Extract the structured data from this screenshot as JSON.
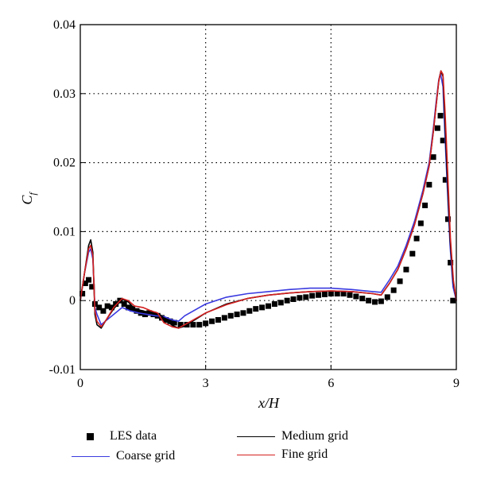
{
  "chart_data": {
    "type": "line",
    "xlabel": "x/H",
    "ylabel": "C_f",
    "xlim": [
      0,
      9
    ],
    "ylim": [
      -0.01,
      0.04
    ],
    "x_ticks": [
      0,
      3,
      6,
      9
    ],
    "x_tick_labels": [
      "0",
      "3",
      "6",
      "9"
    ],
    "y_ticks": [
      -0.01,
      0,
      0.01,
      0.02,
      0.03,
      0.04
    ],
    "y_tick_labels": [
      "-0.01",
      "0",
      "0.01",
      "0.02",
      "0.03",
      "0.04"
    ],
    "grid": "dotted",
    "legend_position": "bottom",
    "series": [
      {
        "name": "LES data",
        "marker": "square",
        "color": "#000000",
        "points": [
          [
            0.05,
            0.001
          ],
          [
            0.12,
            0.0025
          ],
          [
            0.2,
            0.003
          ],
          [
            0.28,
            0.002
          ],
          [
            0.35,
            -0.0005
          ],
          [
            0.45,
            -0.001
          ],
          [
            0.55,
            -0.0015
          ],
          [
            0.65,
            -0.0008
          ],
          [
            0.75,
            -0.001
          ],
          [
            0.85,
            -0.0005
          ],
          [
            0.95,
            0.0
          ],
          [
            1.05,
            -0.0005
          ],
          [
            1.15,
            -0.001
          ],
          [
            1.25,
            -0.0012
          ],
          [
            1.35,
            -0.0015
          ],
          [
            1.45,
            -0.0018
          ],
          [
            1.55,
            -0.002
          ],
          [
            1.65,
            -0.0018
          ],
          [
            1.75,
            -0.002
          ],
          [
            1.85,
            -0.0022
          ],
          [
            1.95,
            -0.0025
          ],
          [
            2.05,
            -0.0028
          ],
          [
            2.15,
            -0.003
          ],
          [
            2.25,
            -0.0032
          ],
          [
            2.4,
            -0.0035
          ],
          [
            2.55,
            -0.0035
          ],
          [
            2.7,
            -0.0035
          ],
          [
            2.85,
            -0.0035
          ],
          [
            3.0,
            -0.0033
          ],
          [
            3.15,
            -0.003
          ],
          [
            3.3,
            -0.0028
          ],
          [
            3.45,
            -0.0025
          ],
          [
            3.6,
            -0.0022
          ],
          [
            3.75,
            -0.002
          ],
          [
            3.9,
            -0.0018
          ],
          [
            4.05,
            -0.0015
          ],
          [
            4.2,
            -0.0012
          ],
          [
            4.35,
            -0.001
          ],
          [
            4.5,
            -0.0008
          ],
          [
            4.65,
            -0.0005
          ],
          [
            4.8,
            -0.0003
          ],
          [
            4.95,
            0.0
          ],
          [
            5.1,
            0.0002
          ],
          [
            5.25,
            0.0004
          ],
          [
            5.4,
            0.0005
          ],
          [
            5.55,
            0.0007
          ],
          [
            5.7,
            0.0008
          ],
          [
            5.85,
            0.0009
          ],
          [
            6.0,
            0.001
          ],
          [
            6.15,
            0.001
          ],
          [
            6.3,
            0.001
          ],
          [
            6.45,
            0.0008
          ],
          [
            6.6,
            0.0006
          ],
          [
            6.75,
            0.0003
          ],
          [
            6.9,
            0.0
          ],
          [
            7.05,
            -0.0002
          ],
          [
            7.2,
            -0.0001
          ],
          [
            7.35,
            0.0005
          ],
          [
            7.5,
            0.0015
          ],
          [
            7.65,
            0.0028
          ],
          [
            7.8,
            0.0045
          ],
          [
            7.95,
            0.0068
          ],
          [
            8.05,
            0.009
          ],
          [
            8.15,
            0.0112
          ],
          [
            8.25,
            0.0138
          ],
          [
            8.35,
            0.0168
          ],
          [
            8.45,
            0.0208
          ],
          [
            8.55,
            0.025
          ],
          [
            8.62,
            0.0268
          ],
          [
            8.68,
            0.0232
          ],
          [
            8.74,
            0.0175
          ],
          [
            8.8,
            0.0118
          ],
          [
            8.86,
            0.0055
          ],
          [
            8.92,
            0.0
          ]
        ]
      },
      {
        "name": "Coarse grid",
        "color": "#3a3ae0",
        "points": [
          [
            0.0,
            0.0
          ],
          [
            0.1,
            0.004
          ],
          [
            0.2,
            0.007
          ],
          [
            0.25,
            0.0075
          ],
          [
            0.3,
            0.006
          ],
          [
            0.35,
            -0.001
          ],
          [
            0.4,
            -0.002
          ],
          [
            0.5,
            -0.0035
          ],
          [
            0.6,
            -0.003
          ],
          [
            0.8,
            -0.002
          ],
          [
            1.0,
            -0.001
          ],
          [
            1.2,
            -0.0015
          ],
          [
            1.4,
            -0.0018
          ],
          [
            1.6,
            -0.002
          ],
          [
            1.8,
            -0.0022
          ],
          [
            2.0,
            -0.0023
          ],
          [
            2.2,
            -0.0028
          ],
          [
            2.35,
            -0.003
          ],
          [
            2.5,
            -0.0022
          ],
          [
            3.0,
            -0.0005
          ],
          [
            3.5,
            0.0005
          ],
          [
            4.0,
            0.001
          ],
          [
            4.5,
            0.0013
          ],
          [
            5.0,
            0.0016
          ],
          [
            5.5,
            0.0018
          ],
          [
            6.0,
            0.0018
          ],
          [
            6.5,
            0.0016
          ],
          [
            7.0,
            0.0013
          ],
          [
            7.2,
            0.0012
          ],
          [
            7.4,
            0.003
          ],
          [
            7.6,
            0.005
          ],
          [
            7.8,
            0.008
          ],
          [
            8.0,
            0.0115
          ],
          [
            8.2,
            0.016
          ],
          [
            8.35,
            0.02
          ],
          [
            8.45,
            0.025
          ],
          [
            8.52,
            0.029
          ],
          [
            8.58,
            0.032
          ],
          [
            8.62,
            0.033
          ],
          [
            8.68,
            0.031
          ],
          [
            8.72,
            0.025
          ],
          [
            8.78,
            0.017
          ],
          [
            8.85,
            0.008
          ],
          [
            8.92,
            0.002
          ],
          [
            9.0,
            0.0
          ]
        ]
      },
      {
        "name": "Medium grid",
        "color": "#000000",
        "points": [
          [
            0.0,
            0.0
          ],
          [
            0.1,
            0.004
          ],
          [
            0.2,
            0.008
          ],
          [
            0.25,
            0.0088
          ],
          [
            0.3,
            0.007
          ],
          [
            0.35,
            -0.002
          ],
          [
            0.4,
            -0.0035
          ],
          [
            0.5,
            -0.004
          ],
          [
            0.6,
            -0.003
          ],
          [
            0.8,
            -0.0012
          ],
          [
            1.0,
            0.0002
          ],
          [
            1.15,
            -0.0002
          ],
          [
            1.3,
            -0.0012
          ],
          [
            1.5,
            -0.0015
          ],
          [
            1.7,
            -0.0018
          ],
          [
            1.9,
            -0.002
          ],
          [
            2.05,
            -0.0028
          ],
          [
            2.2,
            -0.0036
          ],
          [
            2.35,
            -0.004
          ],
          [
            2.5,
            -0.0037
          ],
          [
            3.0,
            -0.0018
          ],
          [
            3.5,
            -0.0005
          ],
          [
            4.0,
            0.0003
          ],
          [
            4.5,
            0.0008
          ],
          [
            5.0,
            0.0011
          ],
          [
            5.5,
            0.0013
          ],
          [
            6.0,
            0.0014
          ],
          [
            6.5,
            0.0013
          ],
          [
            7.0,
            0.001
          ],
          [
            7.2,
            0.0008
          ],
          [
            7.4,
            0.0025
          ],
          [
            7.6,
            0.0045
          ],
          [
            7.8,
            0.0075
          ],
          [
            8.0,
            0.011
          ],
          [
            8.2,
            0.0155
          ],
          [
            8.35,
            0.0195
          ],
          [
            8.45,
            0.0245
          ],
          [
            8.52,
            0.0285
          ],
          [
            8.58,
            0.0318
          ],
          [
            8.63,
            0.0333
          ],
          [
            8.68,
            0.0325
          ],
          [
            8.72,
            0.027
          ],
          [
            8.78,
            0.0185
          ],
          [
            8.85,
            0.009
          ],
          [
            8.92,
            0.003
          ],
          [
            9.0,
            0.0
          ]
        ]
      },
      {
        "name": "Fine grid",
        "color": "#d42020",
        "points": [
          [
            0.0,
            0.0
          ],
          [
            0.1,
            0.004
          ],
          [
            0.2,
            0.0075
          ],
          [
            0.25,
            0.008
          ],
          [
            0.3,
            0.0065
          ],
          [
            0.35,
            -0.0015
          ],
          [
            0.4,
            -0.003
          ],
          [
            0.5,
            -0.0038
          ],
          [
            0.6,
            -0.003
          ],
          [
            0.8,
            -0.001
          ],
          [
            1.0,
            0.0003
          ],
          [
            1.15,
            0.0
          ],
          [
            1.3,
            -0.0008
          ],
          [
            1.5,
            -0.001
          ],
          [
            1.7,
            -0.0015
          ],
          [
            1.85,
            -0.0018
          ],
          [
            2.0,
            -0.0032
          ],
          [
            2.2,
            -0.0038
          ],
          [
            2.35,
            -0.004
          ],
          [
            2.5,
            -0.0035
          ],
          [
            3.0,
            -0.0018
          ],
          [
            3.5,
            -0.0006
          ],
          [
            4.0,
            0.0003
          ],
          [
            4.5,
            0.0008
          ],
          [
            5.0,
            0.0011
          ],
          [
            5.5,
            0.0013
          ],
          [
            6.0,
            0.0014
          ],
          [
            6.5,
            0.0013
          ],
          [
            7.0,
            0.001
          ],
          [
            7.2,
            0.0008
          ],
          [
            7.4,
            0.0025
          ],
          [
            7.6,
            0.0045
          ],
          [
            7.8,
            0.0075
          ],
          [
            8.0,
            0.011
          ],
          [
            8.2,
            0.0155
          ],
          [
            8.35,
            0.0195
          ],
          [
            8.45,
            0.0245
          ],
          [
            8.52,
            0.0285
          ],
          [
            8.58,
            0.0318
          ],
          [
            8.63,
            0.0333
          ],
          [
            8.68,
            0.0328
          ],
          [
            8.73,
            0.0275
          ],
          [
            8.79,
            0.019
          ],
          [
            8.86,
            0.009
          ],
          [
            8.93,
            0.003
          ],
          [
            9.0,
            0.0
          ]
        ]
      }
    ]
  },
  "legend": {
    "les": "LES data",
    "coarse": "Coarse grid",
    "medium": "Medium grid",
    "fine": "Fine grid"
  },
  "axes": {
    "xlabel": "x/H",
    "ylabel_main": "C",
    "ylabel_sub": "f"
  }
}
